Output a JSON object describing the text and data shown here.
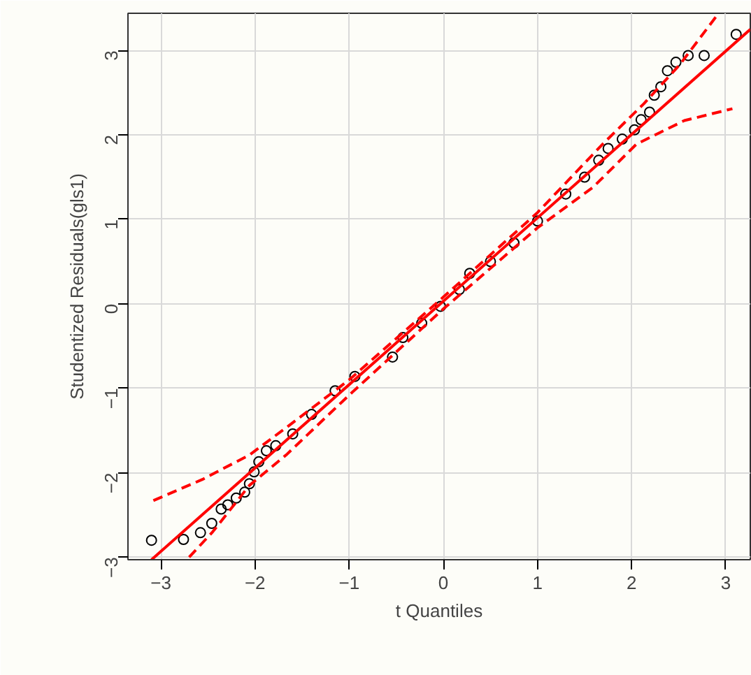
{
  "chart_data": {
    "type": "scatter",
    "xlabel": "t Quantiles",
    "ylabel": "Studentized Residuals(gls1)",
    "xlim": [
      -3.35,
      3.26
    ],
    "ylim": [
      -3.03,
      3.44
    ],
    "xticks": [
      -3,
      -2,
      -1,
      0,
      1,
      2,
      3
    ],
    "yticks": [
      -3,
      -2,
      -1,
      0,
      1,
      2,
      3
    ],
    "grid": true,
    "series": [
      {
        "marker": "circle",
        "color": "#000000",
        "x": [
          -3.1,
          -2.76,
          -2.58,
          -2.46,
          -2.36,
          -2.29,
          -2.2,
          -2.11,
          -2.06,
          -2.01,
          -1.96,
          -1.88,
          -1.78,
          -1.6,
          -1.4,
          -1.15,
          -0.94,
          -0.54,
          -0.43,
          -0.23,
          -0.03,
          0.17,
          0.28,
          0.5,
          0.75,
          1.0,
          1.3,
          1.5,
          1.65,
          1.75,
          1.9,
          2.03,
          2.1,
          2.19,
          2.24,
          2.31,
          2.38,
          2.47,
          2.6,
          2.77,
          3.11
        ],
        "values": [
          -2.8,
          -2.79,
          -2.71,
          -2.6,
          -2.43,
          -2.38,
          -2.3,
          -2.23,
          -2.13,
          -1.99,
          -1.87,
          -1.74,
          -1.68,
          -1.54,
          -1.31,
          -1.03,
          -0.86,
          -0.63,
          -0.4,
          -0.23,
          -0.03,
          0.17,
          0.36,
          0.5,
          0.72,
          0.98,
          1.3,
          1.5,
          1.7,
          1.84,
          1.95,
          2.06,
          2.18,
          2.27,
          2.47,
          2.57,
          2.76,
          2.86,
          2.94,
          2.94,
          3.19
        ]
      },
      {
        "type": "line",
        "line_style": "solid",
        "color": "#ff0000",
        "x": [
          -3.1,
          3.26
        ],
        "values": [
          -3.03,
          3.25
        ]
      },
      {
        "type": "line",
        "line_style": "dashed",
        "color": "#ff0000",
        "x": [
          -3.08,
          -2.56,
          -2.06,
          -1.65,
          -1.0,
          0.0,
          1.0,
          1.7,
          2.13,
          2.51,
          2.91
        ],
        "values": [
          -2.33,
          -2.08,
          -1.79,
          -1.45,
          -0.9,
          0.08,
          1.08,
          1.9,
          2.37,
          2.83,
          3.42
        ]
      },
      {
        "type": "line",
        "line_style": "dashed",
        "color": "#ff0000",
        "x": [
          -2.7,
          -2.45,
          -2.06,
          -1.66,
          -1.0,
          0.0,
          1.0,
          1.59,
          2.05,
          2.56,
          3.07
        ],
        "values": [
          -3.0,
          -2.7,
          -2.15,
          -1.78,
          -1.08,
          -0.06,
          0.9,
          1.38,
          1.89,
          2.17,
          2.31
        ]
      }
    ]
  }
}
